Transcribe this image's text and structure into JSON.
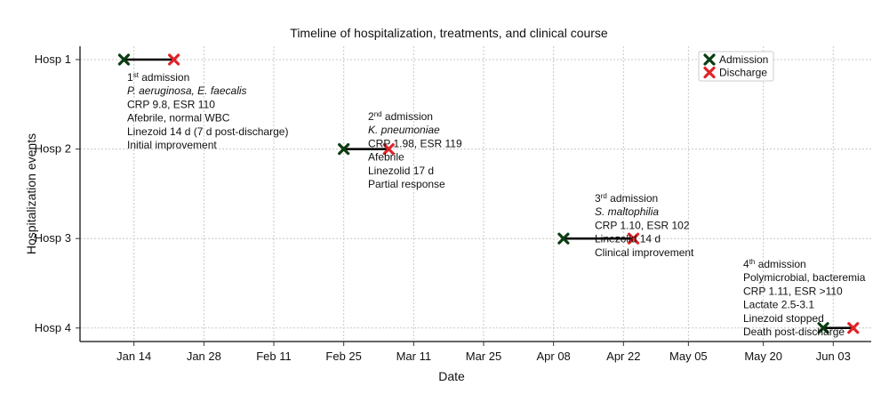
{
  "chart_data": {
    "type": "scatter",
    "title": "Timeline of hospitalization, treatments, and clinical course",
    "xlabel": "Date",
    "ylabel": "Hospitalization events",
    "grid": true,
    "legend_position": "top-right",
    "x_ticks": [
      "Jan 14",
      "Jan 28",
      "Feb 11",
      "Feb 25",
      "Mar 11",
      "Mar 25",
      "Apr 08",
      "Apr 22",
      "May 05",
      "May 20",
      "Jun 03"
    ],
    "y_ticks": [
      "Hosp 1",
      "Hosp 2",
      "Hosp 3",
      "Hosp 4"
    ],
    "legend": [
      {
        "name": "Admission",
        "color": "#0b3d12",
        "marker": "x"
      },
      {
        "name": "Discharge",
        "color": "#e0242a",
        "marker": "x"
      }
    ],
    "series": [
      {
        "name": "Admission",
        "x": [
          "Jan 12",
          "Feb 25",
          "Apr 10",
          "Jun 01"
        ],
        "y": [
          "Hosp 1",
          "Hosp 2",
          "Hosp 3",
          "Hosp 4"
        ]
      },
      {
        "name": "Discharge",
        "x": [
          "Jan 22",
          "Mar 06",
          "Apr 24",
          "Jun 07"
        ],
        "y": [
          "Hosp 1",
          "Hosp 2",
          "Hosp 3",
          "Hosp 4"
        ]
      }
    ],
    "annotations": [
      {
        "hosp": "Hosp 1",
        "ordinal": "1",
        "sup": "st",
        "admission_word": " admission",
        "lines": [
          {
            "text": "P. aeruginosa, E. faecalis",
            "italic": true
          },
          {
            "text": "CRP 9.8, ESR 110",
            "italic": false
          },
          {
            "text": "Afebrile, normal WBC",
            "italic": false
          },
          {
            "text": "Linezoid 14 d (7 d post-discharge)",
            "italic": false
          },
          {
            "text": "Initial improvement",
            "italic": false
          }
        ]
      },
      {
        "hosp": "Hosp 2",
        "ordinal": "2",
        "sup": "nd",
        "admission_word": " admission",
        "lines": [
          {
            "text": "K. pneumoniae",
            "italic": true
          },
          {
            "text": "CRP 1.98, ESR 119",
            "italic": false
          },
          {
            "text": "Afebrile",
            "italic": false
          },
          {
            "text": "Linezolid 17 d",
            "italic": false
          },
          {
            "text": "Partial response",
            "italic": false
          }
        ]
      },
      {
        "hosp": "Hosp 3",
        "ordinal": "3",
        "sup": "rd",
        "admission_word": " admission",
        "lines": [
          {
            "text": "S. maltophilia",
            "italic": true
          },
          {
            "text": "CRP 1.10, ESR 102",
            "italic": false
          },
          {
            "text": "Linezolid 14 d",
            "italic": false
          },
          {
            "text": "Clinical improvement",
            "italic": false
          }
        ]
      },
      {
        "hosp": "Hosp 4",
        "ordinal": "4",
        "sup": "th",
        "admission_word": " admission",
        "lines": [
          {
            "text": "Polymicrobial, bacteremia",
            "italic": false
          },
          {
            "text": "CRP 1.11, ESR >110",
            "italic": false
          },
          {
            "text": "Lactate 2.5-3.1",
            "italic": false
          },
          {
            "text": "Linezoid stopped",
            "italic": false
          },
          {
            "text": "Death post-discharge",
            "italic": false
          }
        ]
      }
    ]
  }
}
